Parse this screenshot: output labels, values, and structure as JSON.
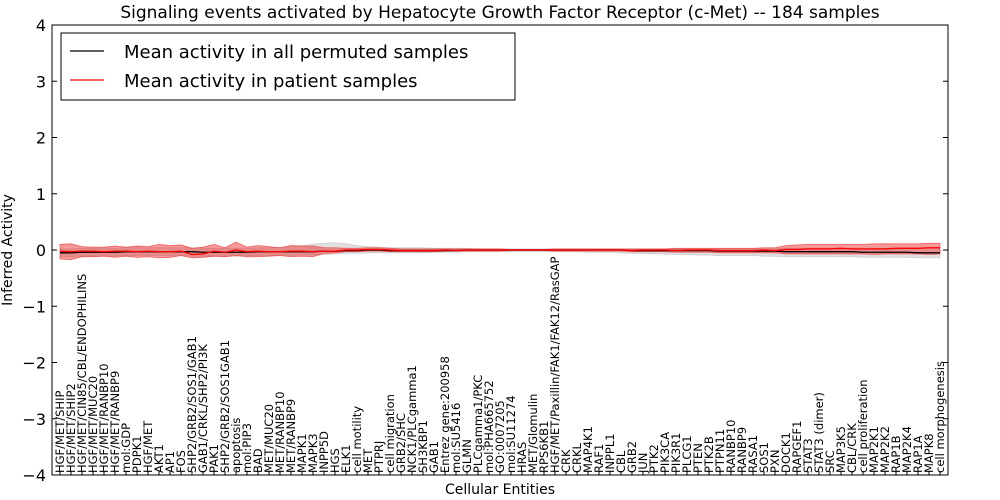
{
  "chart_data": {
    "type": "line",
    "title": "Signaling events activated by Hepatocyte Growth Factor Receptor (c-Met) -- 184 samples",
    "xlabel": "Cellular Entities",
    "ylabel": "Inferred Activity",
    "ylim": [
      -4,
      4
    ],
    "yticks": [
      -4,
      -3,
      -2,
      -1,
      0,
      1,
      2,
      3,
      4
    ],
    "ytick_labels": [
      "−4",
      "−3",
      "−2",
      "−1",
      "0",
      "1",
      "2",
      "3",
      "4"
    ],
    "grid": false,
    "legend_position": "top-left",
    "categories": [
      "HGF/MET/SHIP",
      "HGF/MET/SHIP2",
      "HGF/MET/CIN85/CBL/ENDOPHILINS",
      "HGF/MET/MUC20",
      "HGF/MET/RANBP10",
      "HGF/MET/RANBP9",
      "mol:GDP",
      "PDPK1",
      "HGF/MET",
      "AKT1",
      "AP1",
      "FOS",
      "SHP2/GRB2/SOS1/GAB1",
      "GAB1/CRKL/SHP2/PI3K",
      "PAK1",
      "SHP2/GRB2/SOS1GAB1",
      "apoptosis",
      "mol:PIP3",
      "BAD",
      "MET/MUC20",
      "MET/RANBP10",
      "MET/RANBP9",
      "MAPK1",
      "MAPK3",
      "INPP5D",
      "HGS",
      "ELK1",
      "cell motility",
      "MET",
      "PTPRJ",
      "cell migration",
      "GRB2/SHC",
      "NCK1/PLCgamma1",
      "SH3KBP1",
      "GAB1",
      "Entrez gene:200958",
      "mol:SU5416",
      "GLMN",
      "PLCgamma1/PKC",
      "mol:PHA665752",
      "GO:0007205",
      "mol:SU11274",
      "HRAS",
      "MET/Glomulin",
      "RPS6KB1",
      "HGF/MET/Paxillin/FAK1/FAK12/RasGAP",
      "CRK",
      "CRKL",
      "MAP4K1",
      "RAF1",
      "INPPL1",
      "CBL",
      "GRB2",
      "JUN",
      "PTK2",
      "PIK3CA",
      "PIK3R1",
      "PLCG1",
      "PTEN",
      "PTK2B",
      "PTPN11",
      "RANBP10",
      "RANBP9",
      "RASA1",
      "SOS1",
      "PXN",
      "DOCK1",
      "RAPGEF1",
      "STAT3",
      "STAT3 (dimer)",
      "SRC",
      "MAP3K5",
      "CBL/CRK",
      "cell proliferation",
      "MAP2K1",
      "MAP2K2",
      "RAP1B",
      "MAP2K4",
      "RAP1A",
      "MAPK8",
      "cell morphogenesis"
    ],
    "series": [
      {
        "name": "Mean activity in all permuted samples",
        "color": "#000000",
        "values": [
          -0.05,
          -0.05,
          -0.04,
          -0.04,
          -0.04,
          -0.04,
          -0.03,
          -0.03,
          -0.03,
          -0.03,
          -0.03,
          -0.03,
          -0.03,
          -0.04,
          -0.04,
          -0.04,
          -0.04,
          -0.04,
          -0.03,
          -0.03,
          -0.03,
          -0.03,
          -0.03,
          -0.03,
          -0.02,
          -0.02,
          -0.01,
          -0.01,
          0.0,
          0.0,
          -0.01,
          -0.01,
          -0.01,
          -0.01,
          -0.01,
          -0.01,
          -0.01,
          0.0,
          0.0,
          0.0,
          0.0,
          0.0,
          0.0,
          0.0,
          0.0,
          0.0,
          0.0,
          0.0,
          0.0,
          0.0,
          0.0,
          0.0,
          -0.01,
          -0.01,
          -0.01,
          -0.01,
          -0.01,
          -0.01,
          -0.01,
          -0.01,
          -0.02,
          -0.02,
          -0.02,
          -0.02,
          -0.02,
          -0.02,
          -0.03,
          -0.03,
          -0.03,
          -0.03,
          -0.03,
          -0.03,
          -0.03,
          -0.04,
          -0.04,
          -0.04,
          -0.04,
          -0.04,
          -0.05,
          -0.05,
          -0.05
        ]
      },
      {
        "name": "Mean activity in patient samples",
        "color": "#ff0000",
        "values": [
          -0.02,
          -0.03,
          -0.02,
          -0.02,
          -0.03,
          -0.02,
          -0.02,
          -0.03,
          -0.02,
          -0.03,
          -0.03,
          -0.02,
          -0.08,
          -0.07,
          -0.02,
          -0.04,
          0.0,
          -0.03,
          -0.02,
          -0.03,
          -0.03,
          -0.02,
          -0.02,
          -0.03,
          -0.02,
          -0.02,
          0.0,
          0.0,
          0.01,
          0.01,
          0.0,
          -0.01,
          -0.01,
          -0.01,
          -0.01,
          0.0,
          -0.01,
          0.0,
          0.0,
          0.0,
          0.0,
          0.0,
          0.0,
          0.0,
          0.0,
          0.0,
          0.0,
          0.0,
          0.0,
          0.0,
          0.0,
          0.0,
          -0.01,
          0.0,
          0.0,
          0.0,
          -0.01,
          0.0,
          0.0,
          0.0,
          -0.01,
          -0.01,
          -0.01,
          -0.01,
          0.0,
          -0.01,
          0.01,
          0.01,
          0.02,
          0.02,
          0.02,
          0.03,
          0.02,
          0.02,
          0.02,
          0.02,
          0.03,
          0.03,
          0.03,
          0.04,
          0.04
        ]
      }
    ],
    "bands": [
      {
        "name": "permuted samples spread",
        "color": "#bbbbbb",
        "opacity": 0.45,
        "lower": [
          -0.12,
          -0.12,
          -0.11,
          -0.11,
          -0.11,
          -0.1,
          -0.1,
          -0.1,
          -0.1,
          -0.1,
          -0.1,
          -0.1,
          -0.11,
          -0.11,
          -0.11,
          -0.11,
          -0.11,
          -0.1,
          -0.1,
          -0.1,
          -0.1,
          -0.1,
          -0.09,
          -0.09,
          -0.08,
          -0.07,
          -0.06,
          -0.06,
          -0.05,
          -0.05,
          -0.05,
          -0.05,
          -0.05,
          -0.05,
          -0.04,
          -0.04,
          -0.04,
          -0.03,
          -0.03,
          -0.03,
          -0.03,
          -0.03,
          -0.03,
          -0.03,
          -0.03,
          -0.03,
          -0.03,
          -0.03,
          -0.04,
          -0.04,
          -0.04,
          -0.05,
          -0.06,
          -0.06,
          -0.07,
          -0.07,
          -0.08,
          -0.08,
          -0.09,
          -0.09,
          -0.1,
          -0.1,
          -0.1,
          -0.1,
          -0.11,
          -0.11,
          -0.12,
          -0.12,
          -0.12,
          -0.12,
          -0.12,
          -0.12,
          -0.12,
          -0.13,
          -0.13,
          -0.13,
          -0.13,
          -0.13,
          -0.14,
          -0.14,
          -0.14
        ],
        "upper": [
          0.02,
          0.02,
          0.03,
          0.03,
          0.03,
          0.03,
          0.04,
          0.04,
          0.04,
          0.04,
          0.04,
          0.04,
          0.04,
          0.03,
          0.03,
          0.03,
          0.03,
          0.03,
          0.04,
          0.04,
          0.05,
          0.06,
          0.08,
          0.1,
          0.12,
          0.13,
          0.11,
          0.08,
          0.06,
          0.05,
          0.04,
          0.04,
          0.04,
          0.04,
          0.03,
          0.03,
          0.03,
          0.03,
          0.02,
          0.02,
          0.02,
          0.02,
          0.02,
          0.02,
          0.02,
          0.02,
          0.02,
          0.02,
          0.02,
          0.02,
          0.02,
          0.02,
          0.02,
          0.02,
          0.02,
          0.02,
          0.02,
          0.02,
          0.02,
          0.02,
          0.02,
          0.02,
          0.02,
          0.02,
          0.02,
          0.02,
          0.03,
          0.03,
          0.03,
          0.03,
          0.03,
          0.03,
          0.03,
          0.03,
          0.03,
          0.03,
          0.03,
          0.03,
          0.03,
          0.03,
          0.03
        ]
      },
      {
        "name": "patient samples spread",
        "color": "#ee3333",
        "opacity": 0.5,
        "lower": [
          -0.16,
          -0.17,
          -0.12,
          -0.12,
          -0.11,
          -0.13,
          -0.11,
          -0.13,
          -0.12,
          -0.14,
          -0.13,
          -0.1,
          -0.14,
          -0.13,
          -0.11,
          -0.12,
          -0.1,
          -0.12,
          -0.12,
          -0.11,
          -0.1,
          -0.12,
          -0.11,
          -0.12,
          -0.06,
          -0.05,
          -0.03,
          -0.03,
          -0.02,
          -0.02,
          -0.03,
          -0.03,
          -0.03,
          -0.03,
          -0.03,
          -0.02,
          -0.02,
          -0.02,
          -0.02,
          -0.02,
          -0.02,
          -0.01,
          -0.01,
          -0.01,
          -0.01,
          -0.02,
          -0.02,
          -0.02,
          -0.02,
          -0.02,
          -0.02,
          -0.02,
          -0.03,
          -0.03,
          -0.03,
          -0.03,
          -0.04,
          -0.04,
          -0.04,
          -0.04,
          -0.05,
          -0.05,
          -0.05,
          -0.05,
          -0.05,
          -0.05,
          -0.07,
          -0.07,
          -0.07,
          -0.07,
          -0.07,
          -0.07,
          -0.07,
          -0.07,
          -0.08,
          -0.07,
          -0.07,
          -0.07,
          -0.07,
          -0.08,
          -0.07
        ],
        "upper": [
          0.1,
          0.11,
          0.06,
          0.05,
          0.05,
          0.07,
          0.05,
          0.07,
          0.06,
          0.1,
          0.08,
          0.09,
          0.03,
          0.05,
          0.1,
          0.04,
          0.14,
          0.05,
          0.08,
          0.06,
          0.04,
          0.08,
          0.07,
          0.07,
          0.04,
          0.04,
          0.03,
          0.03,
          0.04,
          0.04,
          0.03,
          0.02,
          0.02,
          0.02,
          0.02,
          0.02,
          0.02,
          0.02,
          0.02,
          0.02,
          0.02,
          0.01,
          0.01,
          0.01,
          0.01,
          0.02,
          0.02,
          0.02,
          0.02,
          0.02,
          0.02,
          0.02,
          0.02,
          0.02,
          0.02,
          0.02,
          0.03,
          0.03,
          0.03,
          0.03,
          0.03,
          0.03,
          0.03,
          0.03,
          0.04,
          0.04,
          0.08,
          0.09,
          0.1,
          0.1,
          0.1,
          0.1,
          0.1,
          0.1,
          0.11,
          0.11,
          0.11,
          0.11,
          0.11,
          0.12,
          0.12
        ]
      }
    ]
  }
}
